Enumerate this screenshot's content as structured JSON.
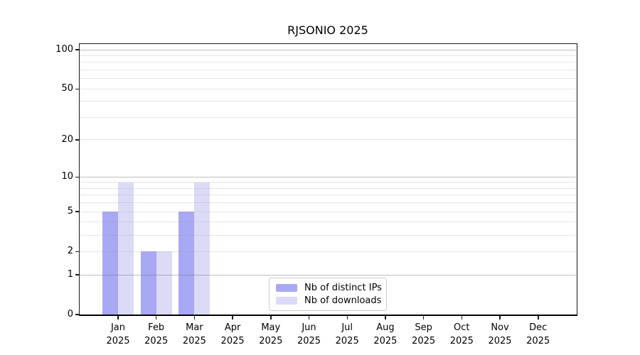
{
  "figure": {
    "background": "#ffffff"
  },
  "chart_data": {
    "type": "bar",
    "title": "RJSONIO 2025",
    "categories": [
      {
        "month": "Jan",
        "year": "2025"
      },
      {
        "month": "Feb",
        "year": "2025"
      },
      {
        "month": "Mar",
        "year": "2025"
      },
      {
        "month": "Apr",
        "year": "2025"
      },
      {
        "month": "May",
        "year": "2025"
      },
      {
        "month": "Jun",
        "year": "2025"
      },
      {
        "month": "Jul",
        "year": "2025"
      },
      {
        "month": "Aug",
        "year": "2025"
      },
      {
        "month": "Sep",
        "year": "2025"
      },
      {
        "month": "Oct",
        "year": "2025"
      },
      {
        "month": "Nov",
        "year": "2025"
      },
      {
        "month": "Dec",
        "year": "2025"
      }
    ],
    "series": [
      {
        "name": "Nb of distinct IPs",
        "color": "#a8a8f4",
        "values": [
          5,
          2,
          5,
          0,
          0,
          0,
          0,
          0,
          0,
          0,
          0,
          0
        ]
      },
      {
        "name": "Nb of downloads",
        "color": "#dbdbf8",
        "values": [
          9,
          2,
          9,
          0,
          0,
          0,
          0,
          0,
          0,
          0,
          0,
          0
        ]
      }
    ],
    "y_axis": {
      "scale": "log1p",
      "tick_values": [
        0,
        1,
        2,
        5,
        10,
        20,
        50,
        100
      ],
      "major_gridlines": [
        1,
        10,
        100
      ],
      "minor_gridlines": [
        3,
        4,
        6,
        7,
        8,
        9,
        30,
        40,
        60,
        70,
        80,
        90
      ],
      "range": [
        0,
        110
      ]
    },
    "xlabel": "",
    "ylabel": "",
    "grid": true,
    "legend": {
      "position": "bottom-center"
    },
    "colors": {
      "spine": "#1a1a1a",
      "major_grid": "#c3c3c3",
      "minor_grid": "#e6e6e6",
      "text": "#000000"
    }
  }
}
